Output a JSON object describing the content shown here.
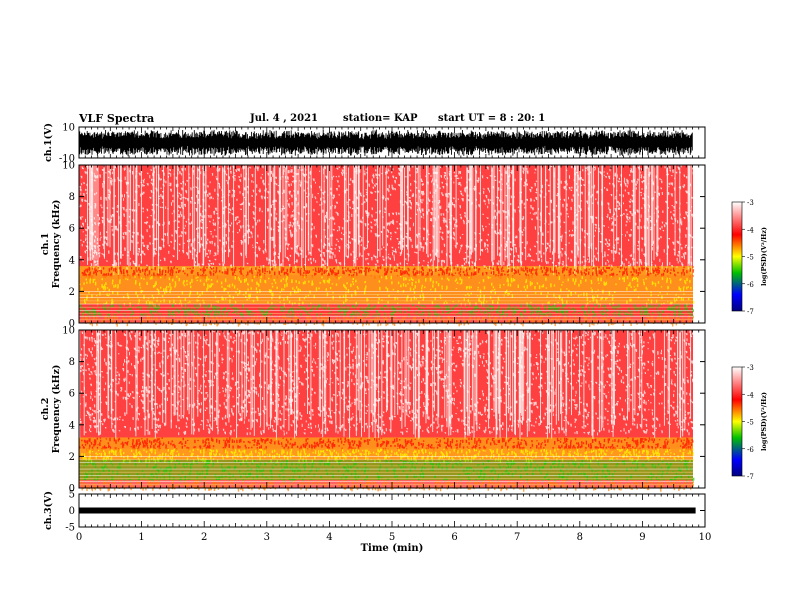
{
  "header": {
    "title": "VLF Spectra",
    "date": "Jul. 4 , 2021",
    "station": "station= KAP",
    "start": "start UT = 8 : 20: 1"
  },
  "chart_data": [
    {
      "type": "line",
      "title": "",
      "ylabel": "ch.1(V)",
      "ylim": [
        -10,
        10
      ],
      "yticks": [
        "10",
        "-10"
      ],
      "xlim": [
        0,
        10
      ],
      "description_level": [
        -9,
        8
      ]
    },
    {
      "type": "heatmap",
      "ylabel": "ch.1\nFrequency (kHz)",
      "ylabel_lines": [
        "ch.1",
        "Frequency (kHz)"
      ],
      "ylim": [
        0,
        10
      ],
      "yticks": [
        "0",
        "2",
        "4",
        "6",
        "8",
        "10"
      ],
      "xlim": [
        0,
        10
      ],
      "colorscale": [
        "#000080",
        "#0000ff",
        "#00c000",
        "#ffff00",
        "#ff0000",
        "#ffffff"
      ],
      "colorbar": {
        "label": "log(PSD)(V²/Hz)",
        "ticks": [
          "-3",
          "-4",
          "-5",
          "-6",
          "-7"
        ],
        "range": [
          -7,
          -3
        ]
      },
      "bands": [
        {
          "f": [
            3.0,
            3.6
          ],
          "color": "#ffe000"
        },
        {
          "f": [
            1.2,
            3.0
          ],
          "color": "#ffd000"
        },
        {
          "f": [
            0.5,
            1.2
          ],
          "color": "#ff3030"
        },
        {
          "f": [
            0,
            0.5
          ],
          "color": "#ff6060"
        }
      ]
    },
    {
      "type": "heatmap",
      "ylabel": "ch.2\nFrequency (kHz)",
      "ylabel_lines": [
        "ch.2",
        "Frequency (kHz)"
      ],
      "ylim": [
        0,
        10
      ],
      "yticks": [
        "0",
        "2",
        "4",
        "6",
        "8",
        "10"
      ],
      "xlim": [
        0,
        10
      ],
      "colorscale": [
        "#000080",
        "#0000ff",
        "#00c000",
        "#ffff00",
        "#ff0000",
        "#ffffff"
      ],
      "colorbar": {
        "label": "log(PSD)(V²/Hz)",
        "ticks": [
          "-3",
          "-4",
          "-5",
          "-6",
          "-7"
        ],
        "range": [
          -7,
          -3
        ]
      },
      "bands": [
        {
          "f": [
            2.5,
            3.2
          ],
          "color": "#ffd000"
        },
        {
          "f": [
            1.8,
            2.5
          ],
          "color": "#ffe000"
        },
        {
          "f": [
            0.5,
            1.8
          ],
          "color": "#40e000"
        },
        {
          "f": [
            0,
            0.5
          ],
          "color": "#ff8080"
        }
      ]
    },
    {
      "type": "line",
      "ylabel": "ch.3(V)",
      "ylim": [
        -5,
        5
      ],
      "yticks": [
        "5",
        "0",
        "-5"
      ],
      "xlim": [
        0,
        10
      ],
      "xlabel": "Time (min)",
      "xticks": [
        "0",
        "1",
        "2",
        "3",
        "4",
        "5",
        "6",
        "7",
        "8",
        "9",
        "10"
      ],
      "level": 0,
      "data_end": 9.85
    }
  ]
}
